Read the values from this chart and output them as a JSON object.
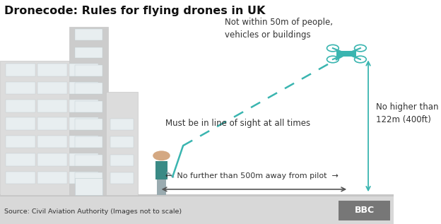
{
  "title": "Dronecode: Rules for flying drones in UK",
  "source": "Source: Civil Aviation Authority (Images not to scale)",
  "bbc_text": "BBC",
  "bg_color": "#ffffff",
  "footer_bg": "#d8d8d8",
  "building_color": "#dcdcdc",
  "building_color2": "#cccccc",
  "building_outline": "#c8c8c8",
  "window_color": "#e8eef0",
  "window_outline": "#c0ccd0",
  "teal": "#3ab5b0",
  "person_gray": "#9aabb0",
  "person_vest": "#3a8a85",
  "skin_color": "#d4a882",
  "ground_color": "#c8c8c8",
  "arrow_color": "#555555",
  "text_color": "#333333",
  "annotation_50m": "Not within 50m of people,\nvehicles or buildings",
  "annotation_sight": "Must be in line of sight at all times",
  "annotation_500m": "←  No further than 500m away from pilot  →",
  "annotation_122m": "No higher than\n122m (400ft)"
}
